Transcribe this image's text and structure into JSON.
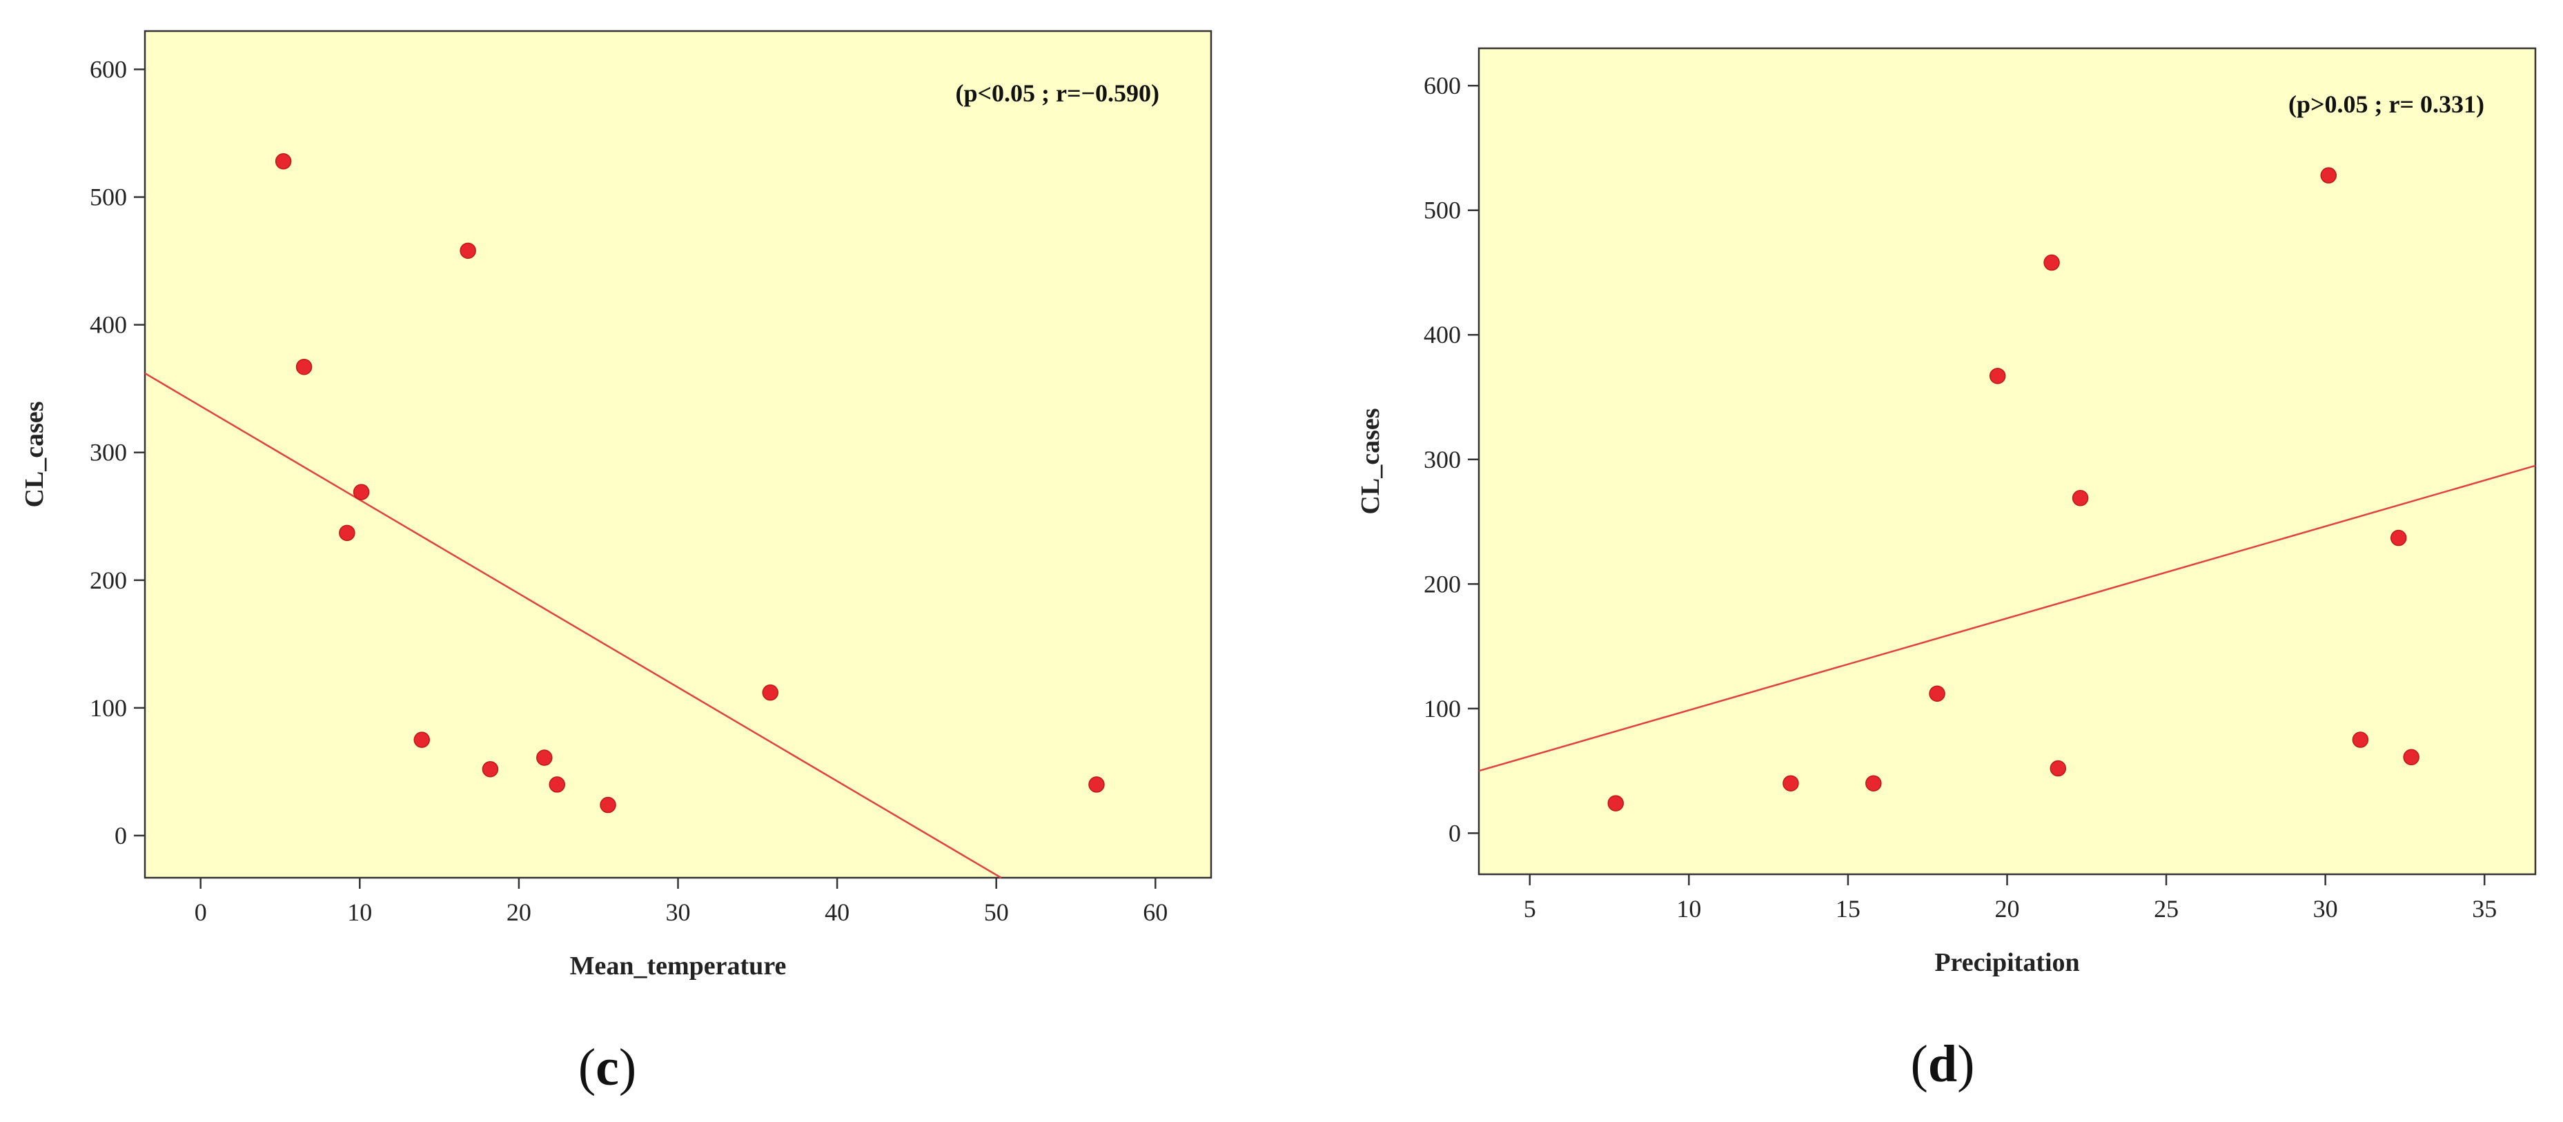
{
  "colors": {
    "plot_background": "#FFFFC8",
    "axis": "#333333",
    "point": "#E8262D",
    "fit_line": "#E34040"
  },
  "chart_data": [
    {
      "type": "scatter",
      "panel_label": "c",
      "xlabel": "Mean_temperature",
      "ylabel": "CL_cases",
      "annotation": "(p<0.05 ; r=−0.590)",
      "xlim": [
        -3.5,
        63.5
      ],
      "ylim": [
        -33,
        630
      ],
      "xticks": [
        0,
        10,
        20,
        30,
        40,
        50,
        60
      ],
      "yticks": [
        0,
        100,
        200,
        300,
        400,
        500,
        600
      ],
      "grid": false,
      "points": [
        {
          "x": 5.2,
          "y": 528
        },
        {
          "x": 6.5,
          "y": 367
        },
        {
          "x": 9.2,
          "y": 237
        },
        {
          "x": 10.1,
          "y": 269
        },
        {
          "x": 13.9,
          "y": 75
        },
        {
          "x": 16.8,
          "y": 458
        },
        {
          "x": 18.2,
          "y": 52
        },
        {
          "x": 21.6,
          "y": 61
        },
        {
          "x": 22.4,
          "y": 40
        },
        {
          "x": 25.6,
          "y": 24
        },
        {
          "x": 35.8,
          "y": 112
        },
        {
          "x": 56.3,
          "y": 40
        }
      ],
      "fit_line": {
        "x": [
          -3.5,
          50.3
        ],
        "y": [
          362,
          -33
        ]
      }
    },
    {
      "type": "scatter",
      "panel_label": "d",
      "xlabel": "Precipitation",
      "ylabel": "CL_cases",
      "annotation": "(p>0.05 ; r= 0.331)",
      "xlim": [
        3.4,
        36.6
      ],
      "ylim": [
        -33,
        630
      ],
      "xticks": [
        5,
        10,
        15,
        20,
        25,
        30,
        35
      ],
      "yticks": [
        0,
        100,
        200,
        300,
        400,
        500,
        600
      ],
      "grid": false,
      "points": [
        {
          "x": 7.7,
          "y": 24
        },
        {
          "x": 13.2,
          "y": 40
        },
        {
          "x": 15.8,
          "y": 40
        },
        {
          "x": 17.8,
          "y": 112
        },
        {
          "x": 19.7,
          "y": 367
        },
        {
          "x": 21.4,
          "y": 458
        },
        {
          "x": 21.6,
          "y": 52
        },
        {
          "x": 22.3,
          "y": 269
        },
        {
          "x": 30.1,
          "y": 528
        },
        {
          "x": 31.1,
          "y": 75
        },
        {
          "x": 32.3,
          "y": 237
        },
        {
          "x": 32.7,
          "y": 61
        }
      ],
      "fit_line": {
        "x": [
          3.4,
          36.6
        ],
        "y": [
          50,
          295
        ]
      }
    }
  ]
}
